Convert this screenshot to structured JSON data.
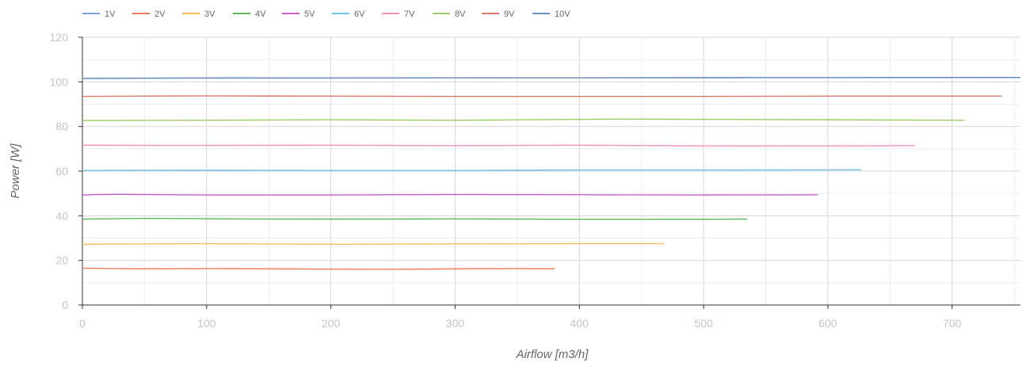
{
  "chart_data": {
    "type": "line",
    "xlabel": "Airflow [m3/h]",
    "ylabel": "Power [W]",
    "xlim": [
      0,
      755
    ],
    "ylim": [
      0,
      120
    ],
    "x_ticks": [
      0,
      100,
      200,
      300,
      400,
      500,
      600,
      700
    ],
    "y_ticks": [
      0,
      20,
      40,
      60,
      80,
      100,
      120
    ],
    "grid": true,
    "legend_position": "top-left",
    "series": [
      {
        "name": "1V",
        "color": "#7b9fd6",
        "x": [
          0,
          50,
          100,
          150,
          200,
          250,
          300,
          350,
          400,
          450,
          500,
          550,
          600,
          650,
          700,
          755
        ],
        "y": [
          101.5,
          101.7,
          101.8,
          101.8,
          101.8,
          101.8,
          101.8,
          101.8,
          101.8,
          101.8,
          101.8,
          101.9,
          101.9,
          101.9,
          101.9,
          101.9
        ]
      },
      {
        "name": "2V",
        "color": "#ef7b5a",
        "x": [
          0,
          50,
          100,
          150,
          200,
          250,
          300,
          350,
          380
        ],
        "y": [
          16.5,
          16.2,
          16.3,
          16.2,
          16.1,
          16.0,
          16.2,
          16.3,
          16.2
        ]
      },
      {
        "name": "3V",
        "color": "#fbbd5c",
        "x": [
          0,
          100,
          200,
          300,
          400,
          468
        ],
        "y": [
          27.2,
          27.5,
          27.2,
          27.4,
          27.5,
          27.5
        ]
      },
      {
        "name": "4V",
        "color": "#5cb85c",
        "x": [
          0,
          60,
          150,
          250,
          300,
          400,
          535
        ],
        "y": [
          38.5,
          38.8,
          38.5,
          38.5,
          38.6,
          38.4,
          38.5
        ]
      },
      {
        "name": "5V",
        "color": "#c75fc9",
        "x": [
          0,
          30,
          100,
          200,
          300,
          400,
          500,
          592
        ],
        "y": [
          49.3,
          49.6,
          49.3,
          49.3,
          49.5,
          49.4,
          49.3,
          49.4
        ]
      },
      {
        "name": "6V",
        "color": "#6ec1e4",
        "x": [
          0,
          100,
          200,
          300,
          400,
          500,
          627
        ],
        "y": [
          60.3,
          60.4,
          60.3,
          60.3,
          60.5,
          60.5,
          60.6
        ]
      },
      {
        "name": "7V",
        "color": "#f291b9",
        "x": [
          0,
          100,
          200,
          300,
          400,
          500,
          600,
          670
        ],
        "y": [
          71.6,
          71.5,
          71.6,
          71.4,
          71.6,
          71.3,
          71.3,
          71.4
        ]
      },
      {
        "name": "8V",
        "color": "#9ccc65",
        "x": [
          0,
          100,
          200,
          300,
          400,
          450,
          550,
          650,
          710
        ],
        "y": [
          82.7,
          82.8,
          83.0,
          82.8,
          83.2,
          83.3,
          83.1,
          82.9,
          82.8
        ]
      },
      {
        "name": "9V",
        "color": "#d9776a",
        "x": [
          0,
          100,
          200,
          300,
          400,
          500,
          600,
          740
        ],
        "y": [
          93.5,
          93.7,
          93.6,
          93.5,
          93.5,
          93.5,
          93.6,
          93.6
        ]
      },
      {
        "name": "10V",
        "color": "#6c8ebf",
        "x": [
          0,
          100,
          200,
          300,
          400,
          500,
          600,
          755
        ],
        "y": [
          101.5,
          101.7,
          101.7,
          101.8,
          101.8,
          101.9,
          101.9,
          102.0
        ]
      }
    ]
  }
}
